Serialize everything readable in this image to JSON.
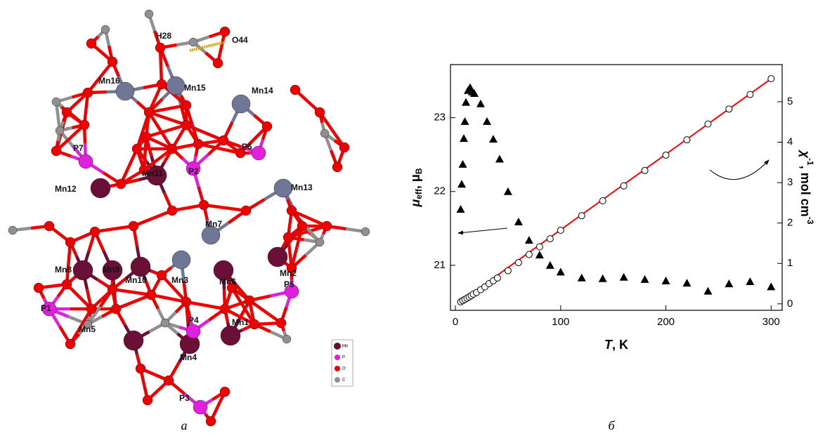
{
  "structure": {
    "atom_labels": [
      "H28",
      "O44",
      "Mn16",
      "Mn15",
      "Mn14",
      "P7",
      "P6",
      "Mn11",
      "P2",
      "Mn13",
      "Mn12",
      "Mn7",
      "Mn8",
      "Mn9",
      "Mn10",
      "Mn3",
      "Mn6",
      "Mn2",
      "P5",
      "P1",
      "P4",
      "Mn5",
      "Mn1",
      "Mn4",
      "P3"
    ],
    "legend": [
      "Mn",
      "P",
      "O",
      "C"
    ]
  },
  "captions": [
    "а",
    "б"
  ],
  "chart_data": {
    "type": "scatter",
    "xlabel": {
      "symbol": "T",
      "unit": ", K"
    },
    "ylabel": {
      "symbol": "μ",
      "symbol_sub": "eff",
      "unit": ", μ",
      "unit_sub": "B"
    },
    "y2label": {
      "symbol": "χ",
      "symbol_sup": "-1",
      "unit": ", mol cm",
      "unit_sup": "-3"
    },
    "xlim": [
      -4.7,
      310.5
    ],
    "xticks": [
      0,
      100,
      200,
      300
    ],
    "ylim": [
      20.39,
      23.72
    ],
    "yticks": [
      21,
      22,
      23
    ],
    "y2lim": [
      -0.16,
      5.92
    ],
    "y2ticks": [
      0,
      1,
      2,
      3,
      4,
      5
    ],
    "series": [
      {
        "marker": "triangle",
        "color": "#000000",
        "x": [
          5,
          6,
          7,
          8,
          9,
          10,
          12,
          14,
          16,
          18,
          24,
          30,
          36,
          42,
          50,
          60,
          70,
          80,
          90,
          100,
          120,
          140,
          160,
          180,
          200,
          220,
          240,
          260,
          280,
          300
        ],
        "values": [
          21.76,
          22.1,
          22.37,
          22.72,
          22.95,
          23.21,
          23.37,
          23.41,
          23.35,
          23.33,
          23.19,
          22.95,
          22.71,
          22.44,
          22.0,
          21.59,
          21.34,
          21.14,
          21.0,
          20.91,
          20.83,
          20.82,
          20.84,
          20.81,
          20.79,
          20.76,
          20.65,
          20.75,
          20.78,
          20.71
        ]
      },
      {
        "marker": "circle",
        "color": "#000000",
        "axis": "y2",
        "x": [
          5,
          7,
          9,
          11,
          13,
          15,
          17,
          20,
          24,
          28,
          32,
          36,
          40,
          50,
          60,
          70,
          80,
          90,
          100,
          120,
          140,
          160,
          180,
          200,
          220,
          240,
          260,
          280,
          300
        ],
        "values": [
          0.05,
          0.08,
          0.11,
          0.14,
          0.17,
          0.2,
          0.24,
          0.28,
          0.35,
          0.42,
          0.5,
          0.57,
          0.64,
          0.82,
          1.02,
          1.22,
          1.41,
          1.61,
          1.82,
          2.18,
          2.55,
          2.92,
          3.3,
          3.68,
          4.06,
          4.45,
          4.82,
          5.18,
          5.57
        ]
      },
      {
        "marker": "line",
        "color": "#ff0000",
        "axis": "y2",
        "x": [
          3,
          300
        ],
        "values": [
          0.02,
          5.57
        ]
      }
    ]
  }
}
